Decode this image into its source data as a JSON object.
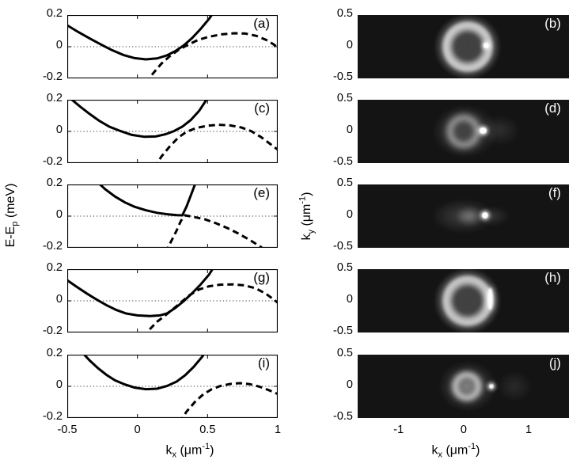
{
  "axis_labels": {
    "energy": {
      "pre": "E-E",
      "sub": "p",
      "post": " (meV)"
    },
    "kx": {
      "pre": "k",
      "sub": "x",
      "mid": " (μm",
      "sup": "-1",
      "end": ")"
    },
    "ky": {
      "pre": "k",
      "sub": "y",
      "mid": " (μm",
      "sup": "-1",
      "end": ")"
    }
  },
  "chart_data": [
    {
      "id": "a",
      "label": "(a)",
      "type": "line",
      "xlabel": "k_x (um^-1)",
      "ylabel": "E-E_p (meV)",
      "xlim": [
        -0.5,
        1
      ],
      "ylim": [
        -0.2,
        0.2
      ],
      "xticks": [
        -0.5,
        0,
        0.5,
        1
      ],
      "yticks": [
        0.2,
        0,
        -0.2
      ],
      "zero_line": true,
      "show_xtick_labels": false,
      "series": [
        {
          "name": "solid-curve",
          "style": "solid",
          "points": [
            [
              -0.5,
              0.135
            ],
            [
              -0.42,
              0.092
            ],
            [
              -0.34,
              0.052
            ],
            [
              -0.26,
              0.014
            ],
            [
              -0.18,
              -0.022
            ],
            [
              -0.1,
              -0.052
            ],
            [
              -0.02,
              -0.072
            ],
            [
              0.06,
              -0.08
            ],
            [
              0.14,
              -0.074
            ],
            [
              0.21,
              -0.055
            ],
            [
              0.27,
              -0.028
            ],
            [
              0.33,
              0.008
            ],
            [
              0.39,
              0.055
            ],
            [
              0.45,
              0.112
            ],
            [
              0.51,
              0.175
            ],
            [
              0.56,
              0.24
            ]
          ]
        },
        {
          "name": "dashed-curve",
          "style": "dashed",
          "points": [
            [
              0.06,
              -0.23
            ],
            [
              0.11,
              -0.17
            ],
            [
              0.17,
              -0.108
            ],
            [
              0.23,
              -0.06
            ],
            [
              0.29,
              -0.022
            ],
            [
              0.36,
              0.012
            ],
            [
              0.43,
              0.042
            ],
            [
              0.51,
              0.063
            ],
            [
              0.6,
              0.078
            ],
            [
              0.69,
              0.085
            ],
            [
              0.77,
              0.083
            ],
            [
              0.85,
              0.068
            ],
            [
              0.92,
              0.042
            ],
            [
              0.97,
              0.015
            ],
            [
              1.0,
              -0.005
            ]
          ]
        }
      ]
    },
    {
      "id": "b",
      "label": "(b)",
      "type": "heatmap",
      "xlim": [
        -1.63,
        1.62
      ],
      "ylim": [
        -0.5,
        0.5
      ],
      "xticks": [
        -1,
        0,
        1
      ],
      "yticks": [
        0.5,
        0,
        -0.5
      ],
      "show_xtick_labels": false,
      "background": "#141414",
      "features": [
        {
          "kind": "blob",
          "cx": 0.05,
          "cy": 0,
          "rx": 0.55,
          "ry": 0.5,
          "alpha": 0.18
        },
        {
          "kind": "ring",
          "cx": 0.06,
          "cy": 0,
          "r": 0.33,
          "brightness": 0.9
        },
        {
          "kind": "dot",
          "cx": 0.35,
          "cy": 0.02,
          "r": 0.04,
          "alpha": 1
        }
      ]
    },
    {
      "id": "c",
      "label": "(c)",
      "type": "line",
      "xlim": [
        -0.5,
        1
      ],
      "ylim": [
        -0.2,
        0.2
      ],
      "xticks": [
        -0.5,
        0,
        0.5,
        1
      ],
      "yticks": [
        0.2,
        0,
        -0.2
      ],
      "zero_line": true,
      "show_xtick_labels": false,
      "series": [
        {
          "name": "solid-curve",
          "style": "solid",
          "points": [
            [
              -0.48,
              0.21
            ],
            [
              -0.41,
              0.158
            ],
            [
              -0.34,
              0.11
            ],
            [
              -0.27,
              0.066
            ],
            [
              -0.2,
              0.03
            ],
            [
              -0.12,
              0.002
            ],
            [
              -0.04,
              -0.022
            ],
            [
              0.05,
              -0.034
            ],
            [
              0.13,
              -0.032
            ],
            [
              0.2,
              -0.018
            ],
            [
              0.26,
              0.002
            ],
            [
              0.32,
              0.03
            ],
            [
              0.38,
              0.072
            ],
            [
              0.44,
              0.13
            ],
            [
              0.5,
              0.21
            ]
          ]
        },
        {
          "name": "dashed-curve",
          "style": "dashed",
          "points": [
            [
              0.12,
              -0.23
            ],
            [
              0.17,
              -0.16
            ],
            [
              0.23,
              -0.095
            ],
            [
              0.29,
              -0.04
            ],
            [
              0.35,
              -0.002
            ],
            [
              0.42,
              0.022
            ],
            [
              0.5,
              0.036
            ],
            [
              0.58,
              0.042
            ],
            [
              0.66,
              0.038
            ],
            [
              0.74,
              0.025
            ],
            [
              0.81,
              0.002
            ],
            [
              0.88,
              -0.035
            ],
            [
              0.94,
              -0.075
            ],
            [
              1.0,
              -0.115
            ]
          ]
        }
      ]
    },
    {
      "id": "d",
      "label": "(d)",
      "type": "heatmap",
      "xlim": [
        -1.63,
        1.62
      ],
      "ylim": [
        -0.5,
        0.5
      ],
      "xticks": [
        -1,
        0,
        1
      ],
      "yticks": [
        0.5,
        0,
        -0.5
      ],
      "show_xtick_labels": false,
      "background": "#141414",
      "features": [
        {
          "kind": "blob",
          "cx": 0.02,
          "cy": 0,
          "rx": 0.5,
          "ry": 0.42,
          "alpha": 0.28
        },
        {
          "kind": "ring",
          "cx": 0.0,
          "cy": 0,
          "r": 0.21,
          "brightness": 0.55,
          "soft": true
        },
        {
          "kind": "blob",
          "cx": 0.55,
          "cy": 0.02,
          "rx": 0.33,
          "ry": 0.24,
          "alpha": 0.12
        },
        {
          "kind": "dot",
          "cx": 0.3,
          "cy": 0.01,
          "r": 0.05,
          "alpha": 1
        }
      ]
    },
    {
      "id": "e",
      "label": "(e)",
      "type": "line",
      "xlim": [
        -0.5,
        1
      ],
      "ylim": [
        -0.2,
        0.2
      ],
      "xticks": [
        -0.5,
        0,
        0.5,
        1
      ],
      "yticks": [
        0.2,
        0,
        -0.2
      ],
      "zero_line": true,
      "show_xtick_labels": false,
      "series": [
        {
          "name": "solid-curve",
          "style": "solid",
          "points": [
            [
              -0.29,
              0.22
            ],
            [
              -0.23,
              0.17
            ],
            [
              -0.16,
              0.124
            ],
            [
              -0.09,
              0.087
            ],
            [
              -0.02,
              0.059
            ],
            [
              0.06,
              0.037
            ],
            [
              0.14,
              0.021
            ],
            [
              0.22,
              0.011
            ],
            [
              0.28,
              0.006
            ],
            [
              0.32,
              0.005
            ],
            [
              0.35,
              0.06
            ],
            [
              0.38,
              0.13
            ],
            [
              0.41,
              0.2
            ],
            [
              0.43,
              0.25
            ]
          ]
        },
        {
          "name": "dashed-curve",
          "style": "dashed",
          "points": [
            [
              0.2,
              -0.23
            ],
            [
              0.24,
              -0.16
            ],
            [
              0.28,
              -0.09
            ],
            [
              0.31,
              -0.03
            ],
            [
              0.34,
              0.005
            ],
            [
              0.4,
              -0.005
            ],
            [
              0.48,
              -0.02
            ],
            [
              0.56,
              -0.045
            ],
            [
              0.64,
              -0.075
            ],
            [
              0.72,
              -0.11
            ],
            [
              0.8,
              -0.15
            ],
            [
              0.88,
              -0.195
            ],
            [
              0.92,
              -0.22
            ]
          ]
        }
      ]
    },
    {
      "id": "f",
      "label": "(f)",
      "type": "heatmap",
      "xlim": [
        -1.63,
        1.62
      ],
      "ylim": [
        -0.5,
        0.5
      ],
      "xticks": [
        -1,
        0,
        1
      ],
      "yticks": [
        0.5,
        0,
        -0.5
      ],
      "show_xtick_labels": false,
      "background": "#141414",
      "features": [
        {
          "kind": "blob",
          "cx": 0.0,
          "cy": 0,
          "rx": 0.5,
          "ry": 0.28,
          "alpha": 0.2
        },
        {
          "kind": "blob",
          "cx": 0.1,
          "cy": 0,
          "rx": 0.22,
          "ry": 0.16,
          "alpha": 0.32
        },
        {
          "kind": "blob",
          "cx": 0.45,
          "cy": 0,
          "rx": 0.26,
          "ry": 0.16,
          "alpha": 0.14
        },
        {
          "kind": "dot",
          "cx": 0.33,
          "cy": 0.01,
          "r": 0.05,
          "alpha": 1
        }
      ]
    },
    {
      "id": "g",
      "label": "(g)",
      "type": "line",
      "xlim": [
        -0.5,
        1
      ],
      "ylim": [
        -0.2,
        0.2
      ],
      "xticks": [
        -0.5,
        0,
        0.5,
        1
      ],
      "yticks": [
        0.2,
        0,
        -0.2
      ],
      "zero_line": true,
      "show_xtick_labels": false,
      "series": [
        {
          "name": "solid-curve",
          "style": "solid",
          "points": [
            [
              -0.5,
              0.13
            ],
            [
              -0.43,
              0.087
            ],
            [
              -0.36,
              0.046
            ],
            [
              -0.29,
              0.008
            ],
            [
              -0.22,
              -0.028
            ],
            [
              -0.15,
              -0.058
            ],
            [
              -0.08,
              -0.08
            ],
            [
              0.0,
              -0.092
            ],
            [
              0.09,
              -0.096
            ],
            [
              0.16,
              -0.092
            ],
            [
              0.21,
              -0.08
            ],
            [
              0.27,
              -0.045
            ],
            [
              0.33,
              -0.002
            ],
            [
              0.39,
              0.048
            ],
            [
              0.45,
              0.103
            ],
            [
              0.51,
              0.165
            ],
            [
              0.56,
              0.235
            ]
          ]
        },
        {
          "name": "dashed-curve",
          "style": "dashed",
          "points": [
            [
              0.04,
              -0.23
            ],
            [
              0.09,
              -0.178
            ],
            [
              0.14,
              -0.132
            ],
            [
              0.19,
              -0.098
            ],
            [
              0.25,
              -0.055
            ],
            [
              0.31,
              -0.01
            ],
            [
              0.37,
              0.035
            ],
            [
              0.44,
              0.072
            ],
            [
              0.51,
              0.092
            ],
            [
              0.59,
              0.102
            ],
            [
              0.68,
              0.104
            ],
            [
              0.76,
              0.098
            ],
            [
              0.84,
              0.08
            ],
            [
              0.91,
              0.048
            ],
            [
              0.97,
              0.01
            ],
            [
              1.0,
              -0.012
            ]
          ]
        }
      ]
    },
    {
      "id": "h",
      "label": "(h)",
      "type": "heatmap",
      "xlim": [
        -1.63,
        1.62
      ],
      "ylim": [
        -0.5,
        0.5
      ],
      "xticks": [
        -1,
        0,
        1
      ],
      "yticks": [
        0.5,
        0,
        -0.5
      ],
      "show_xtick_labels": false,
      "background": "#141414",
      "features": [
        {
          "kind": "blob",
          "cx": 0.05,
          "cy": 0,
          "rx": 0.55,
          "ry": 0.5,
          "alpha": 0.2
        },
        {
          "kind": "ring",
          "cx": 0.06,
          "cy": 0,
          "r": 0.33,
          "brightness": 0.88
        },
        {
          "kind": "bar",
          "cx": 0.41,
          "cy": 0.03,
          "w": 0.08,
          "h": 0.34,
          "alpha": 0.98
        }
      ]
    },
    {
      "id": "i",
      "label": "(i)",
      "type": "line",
      "xlim": [
        -0.5,
        1
      ],
      "ylim": [
        -0.2,
        0.2
      ],
      "xticks": [
        -0.5,
        0,
        0.5,
        1
      ],
      "yticks": [
        0.2,
        0,
        -0.2
      ],
      "zero_line": true,
      "show_xtick_labels": true,
      "series": [
        {
          "name": "solid-curve",
          "style": "solid",
          "points": [
            [
              -0.4,
              0.22
            ],
            [
              -0.34,
              0.163
            ],
            [
              -0.28,
              0.114
            ],
            [
              -0.22,
              0.072
            ],
            [
              -0.16,
              0.038
            ],
            [
              -0.09,
              0.012
            ],
            [
              -0.02,
              -0.008
            ],
            [
              0.06,
              -0.018
            ],
            [
              0.14,
              -0.015
            ],
            [
              0.21,
              0.002
            ],
            [
              0.28,
              0.03
            ],
            [
              0.34,
              0.07
            ],
            [
              0.4,
              0.122
            ],
            [
              0.46,
              0.185
            ],
            [
              0.5,
              0.235
            ]
          ]
        },
        {
          "name": "dashed-curve",
          "style": "dashed",
          "points": [
            [
              0.3,
              -0.23
            ],
            [
              0.35,
              -0.16
            ],
            [
              0.41,
              -0.098
            ],
            [
              0.47,
              -0.05
            ],
            [
              0.53,
              -0.018
            ],
            [
              0.59,
              0.002
            ],
            [
              0.66,
              0.015
            ],
            [
              0.73,
              0.02
            ],
            [
              0.8,
              0.014
            ],
            [
              0.87,
              -0.002
            ],
            [
              0.93,
              -0.022
            ],
            [
              1.0,
              -0.048
            ]
          ]
        }
      ]
    },
    {
      "id": "j",
      "label": "(j)",
      "type": "heatmap",
      "xlim": [
        -1.63,
        1.62
      ],
      "ylim": [
        -0.5,
        0.5
      ],
      "xticks": [
        -1,
        0,
        1
      ],
      "yticks": [
        0.5,
        0,
        -0.5
      ],
      "show_xtick_labels": true,
      "background": "#141414",
      "features": [
        {
          "kind": "blob",
          "cx": 0.06,
          "cy": 0,
          "rx": 0.45,
          "ry": 0.4,
          "alpha": 0.3
        },
        {
          "kind": "ring",
          "cx": 0.05,
          "cy": 0,
          "r": 0.18,
          "brightness": 0.8,
          "soft": true
        },
        {
          "kind": "blob",
          "cx": 0.05,
          "cy": 0,
          "rx": 0.3,
          "ry": 0.28,
          "alpha": 0.35
        },
        {
          "kind": "dot",
          "cx": 0.43,
          "cy": 0,
          "r": 0.035,
          "alpha": 0.95
        },
        {
          "kind": "blob",
          "cx": 0.78,
          "cy": 0,
          "rx": 0.28,
          "ry": 0.25,
          "alpha": 0.1
        }
      ]
    }
  ]
}
